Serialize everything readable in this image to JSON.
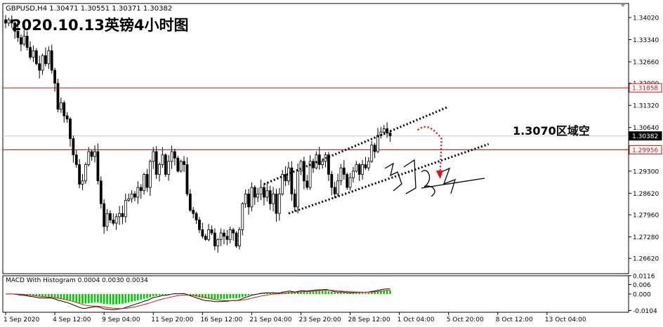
{
  "header": {
    "symbol_info": "GBPUSD,H4  1.30471 1.30551 1.30371 1.30382",
    "title": "2020.10.13英镑4小时图",
    "annotation": "1.3070区域空",
    "signature": "陈炎锦"
  },
  "chart_data": {
    "type": "candlestick",
    "symbol": "GBPUSD",
    "timeframe": "H4",
    "ohlc_last": {
      "open": 1.30471,
      "high": 1.30551,
      "low": 1.30371,
      "close": 1.30382
    },
    "price_axis": {
      "range": [
        1.2615,
        1.3445
      ],
      "ticks": [
        "1.34020",
        "1.33340",
        "1.32660",
        "1.32000",
        "1.31320",
        "1.30640",
        "1.29300",
        "1.28620",
        "1.27960",
        "1.27280",
        "1.26620"
      ]
    },
    "price_labels": [
      {
        "label": "1.31858",
        "value": 1.31858,
        "color": "#e01010"
      },
      {
        "label": "1.30382",
        "value": 1.30382,
        "color": "#000000"
      },
      {
        "label": "1.29956",
        "value": 1.29956,
        "color": "#e01010"
      }
    ],
    "horizontal_lines": [
      {
        "value": 1.31858,
        "color": "#e01010"
      },
      {
        "value": 1.29956,
        "color": "#e01010"
      },
      {
        "value": 1.30382,
        "color": "#c8c8c8"
      }
    ],
    "time_axis": {
      "labels": [
        "1 Sep 2020",
        "4 Sep 12:00",
        "9 Sep 04:00",
        "11 Sep 20:00",
        "16 Sep 12:00",
        "21 Sep 04:00",
        "23 Sep 20:00",
        "28 Sep 12:00",
        "1 Oct 04:00",
        "5 Oct 20:00",
        "8 Oct 12:00",
        "13 Oct 04:00"
      ],
      "bars_per_label": 16
    },
    "close_path": [
      1.3385,
      1.3395,
      1.3385,
      1.336,
      1.334,
      1.332,
      1.3345,
      1.331,
      1.328,
      1.33,
      1.326,
      1.324,
      1.3285,
      1.326,
      1.33,
      1.324,
      1.32,
      1.312,
      1.314,
      1.31,
      1.309,
      1.303,
      1.298,
      1.295,
      1.289,
      1.29,
      1.295,
      1.299,
      1.2975,
      1.299,
      1.29,
      1.283,
      1.276,
      1.28,
      1.278,
      1.277,
      1.279,
      1.28,
      1.279,
      1.284,
      1.2845,
      1.286,
      1.285,
      1.288,
      1.287,
      1.292,
      1.288,
      1.296,
      1.299,
      1.292,
      1.295,
      1.298,
      1.292,
      1.296,
      1.299,
      1.297,
      1.293,
      1.296,
      1.295,
      1.286,
      1.281,
      1.28,
      1.278,
      1.275,
      1.273,
      1.272,
      1.275,
      1.274,
      1.27,
      1.272,
      1.274,
      1.273,
      1.272,
      1.275,
      1.274,
      1.27,
      1.275,
      1.283,
      1.286,
      1.282,
      1.288,
      1.285,
      1.286,
      1.288,
      1.285,
      1.287,
      1.283,
      1.286,
      1.28,
      1.286,
      1.292,
      1.29,
      1.294,
      1.286,
      1.282,
      1.293,
      1.296,
      1.29,
      1.288,
      1.296,
      1.294,
      1.298,
      1.295,
      1.296,
      1.298,
      1.292,
      1.288,
      1.286,
      1.29,
      1.294,
      1.292,
      1.288,
      1.291,
      1.293,
      1.295,
      1.292,
      1.295,
      1.294,
      1.296,
      1.301,
      1.299,
      1.304,
      1.305,
      1.306,
      1.3047,
      1.3038
    ],
    "channel_upper": [
      {
        "bar": 84,
        "price": 1.289
      },
      {
        "bar": 144,
        "price": 1.3128
      }
    ],
    "channel_lower": [
      {
        "bar": 92,
        "price": 1.28
      },
      {
        "bar": 157,
        "price": 1.3013
      }
    ],
    "forecast_arrow": {
      "from": {
        "bar": 134,
        "price": 1.3056
      },
      "peak": {
        "bar": 136,
        "price": 1.3068
      },
      "to": {
        "bar": 139,
        "price": 1.291
      }
    },
    "macd": {
      "label": "MACD With Histogram 0.0004 0.0030 0.0034",
      "range": [
        -0.0115,
        0.0115
      ],
      "ticks": [
        "0.0116",
        "0.006",
        "0.000",
        "-0.0104"
      ],
      "histogram_color": "#00cc00",
      "macd_color": "#000000",
      "signal_color": "#e01010"
    }
  },
  "colors": {
    "background": "#ffffff",
    "candle": "#000000",
    "bear_candle": "#000000",
    "bull_candle": "#ffffff",
    "channel": "#000000",
    "arrow": "#e01010"
  }
}
